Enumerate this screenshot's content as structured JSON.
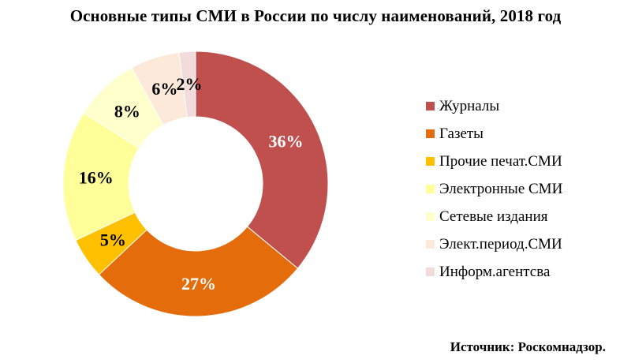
{
  "title": "Основные типы СМИ в России по числу наименований, 2018 год",
  "source": "Источник: Роскомнадзор.",
  "chart_data": {
    "type": "pie",
    "donut": true,
    "legend_position": "right",
    "categories": [
      "Журналы",
      "Газеты",
      "Прочие печат.СМИ",
      "Электронные СМИ",
      "Сетевые издания",
      "Элект.период.СМИ",
      "Информ.агентсва"
    ],
    "values": [
      36,
      27,
      5,
      16,
      8,
      6,
      2
    ],
    "labels": [
      "36%",
      "27%",
      "5%",
      "16%",
      "8%",
      "6%",
      "2%"
    ],
    "colors": [
      "#c0504d",
      "#e46c0a",
      "#ffc000",
      "#ffff99",
      "#ffffcc",
      "#fde9d9",
      "#f2dcdb"
    ],
    "label_colors": [
      "#ffffff",
      "#ffffff",
      "#000000",
      "#000000",
      "#000000",
      "#000000",
      "#000000"
    ]
  }
}
